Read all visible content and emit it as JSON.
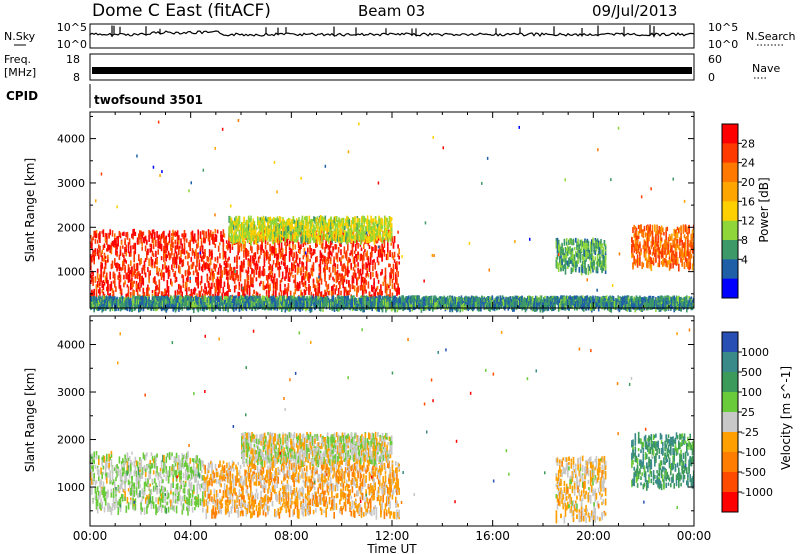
{
  "header": {
    "title": "Dome C East (fitACF)",
    "beam": "Beam 03",
    "date": "09/Jul/2013"
  },
  "strips": {
    "nsky_label": "N.Sky",
    "nsky_ticks": [
      "10^5",
      "10^0"
    ],
    "nsearch_label": "N.Search",
    "nsearch_ticks": [
      "10^5",
      "10^0"
    ],
    "freq_label_1": "Freq.",
    "freq_label_2": "[MHz]",
    "freq_ticks": [
      "18",
      "8"
    ],
    "nave_label": "Nave",
    "nave_ticks": [
      "60",
      "0"
    ],
    "cpid_label": "CPID",
    "cpid_value": "twofsound 3501"
  },
  "axes": {
    "xlabel": "Time UT",
    "xticks": [
      "00:00",
      "04:00",
      "08:00",
      "12:00",
      "16:00",
      "20:00",
      "00:00"
    ],
    "ylabel": "Slant Range [km]",
    "yticks": [
      "4000",
      "3000",
      "2000",
      "1000"
    ]
  },
  "colorbars": {
    "power": {
      "label": "Power [dB]",
      "ticks": [
        "28",
        "24",
        "20",
        "16",
        "12",
        "8",
        "4"
      ],
      "colors": [
        "#ff0000",
        "#ff3a00",
        "#ff7800",
        "#ffa500",
        "#ffd000",
        "#8fd63a",
        "#3d9a68",
        "#1e5fa8",
        "#0000ff"
      ]
    },
    "velocity": {
      "label": "Velocity [m s^-1]",
      "ticks": [
        "1000",
        "500",
        "100",
        "25",
        "-25",
        "-100",
        "-500",
        "-1000"
      ],
      "colors": [
        "#2850b4",
        "#3a8a8a",
        "#3c9b5a",
        "#6acb3a",
        "#c8c8c8",
        "#ffa000",
        "#ff7d00",
        "#ff4b00",
        "#ff0000"
      ]
    }
  },
  "chart_data": [
    {
      "type": "heatmap",
      "title": "Dome C East (fitACF) Beam 03 09/Jul/2013",
      "quantity": "Power [dB]",
      "x_range": [
        "00:00",
        "24:00"
      ],
      "ylim": [
        180,
        4600
      ],
      "clim": [
        0,
        32
      ],
      "regions": [
        {
          "t_start": 0.0,
          "t_end": 12.3,
          "r_min": 400,
          "r_max": 1900,
          "value": 28
        },
        {
          "t_start": 5.5,
          "t_end": 12.0,
          "r_min": 1700,
          "r_max": 2200,
          "value": 14
        },
        {
          "t_start": 0.0,
          "t_end": 24.0,
          "r_min": 180,
          "r_max": 400,
          "value": 8
        },
        {
          "t_start": 18.5,
          "t_end": 20.5,
          "r_min": 1000,
          "r_max": 1700,
          "value": 10
        },
        {
          "t_start": 21.5,
          "t_end": 24.0,
          "r_min": 1100,
          "r_max": 2000,
          "value": 24
        }
      ]
    },
    {
      "type": "heatmap",
      "title": "Dome C East (fitACF) Beam 03 09/Jul/2013",
      "quantity": "Velocity [m s^-1]",
      "x_range": [
        "00:00",
        "24:00"
      ],
      "ylim": [
        180,
        4600
      ],
      "clim": [
        -1000,
        1000
      ],
      "regions": [
        {
          "t_start": 0.0,
          "t_end": 4.5,
          "r_min": 500,
          "r_max": 1700,
          "value": 100
        },
        {
          "t_start": 4.5,
          "t_end": 12.3,
          "r_min": 400,
          "r_max": 1500,
          "value": -200
        },
        {
          "t_start": 6.0,
          "t_end": 12.0,
          "r_min": 1500,
          "r_max": 2100,
          "value": 0
        },
        {
          "t_start": 18.5,
          "t_end": 20.5,
          "r_min": 300,
          "r_max": 1600,
          "value": -100
        },
        {
          "t_start": 21.5,
          "t_end": 24.0,
          "r_min": 1000,
          "r_max": 2100,
          "value": 500
        }
      ]
    }
  ]
}
